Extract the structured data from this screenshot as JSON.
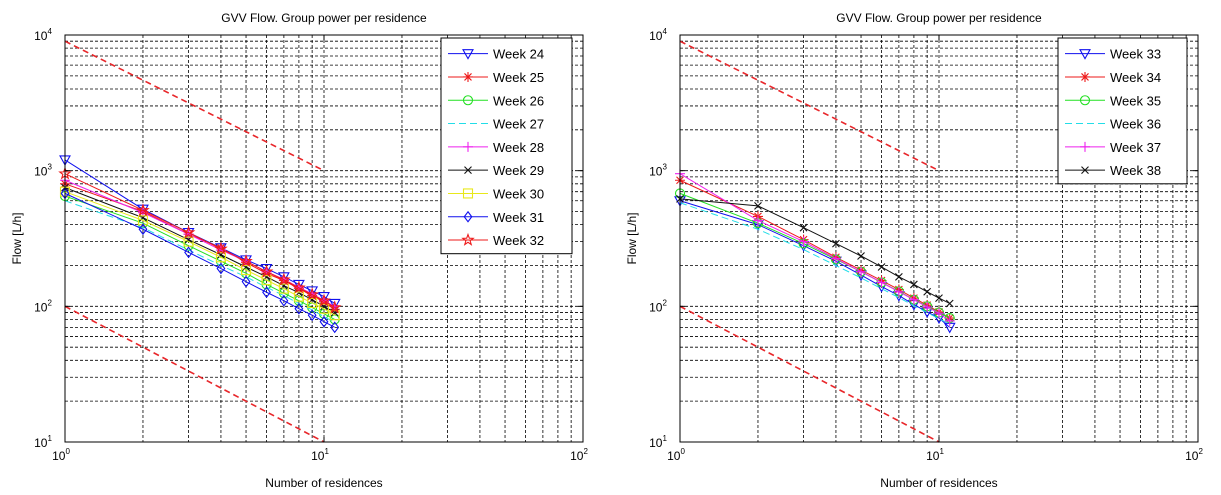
{
  "chart_data": [
    {
      "type": "line",
      "title": "GVV Flow. Group power per residence",
      "xlabel": "Number of residences",
      "ylabel": "Flow [L/h]",
      "xscale": "log",
      "yscale": "log",
      "xlim": [
        1,
        100
      ],
      "ylim": [
        10,
        10000
      ],
      "xticks": [
        {
          "base": "10",
          "exp": "0"
        },
        {
          "base": "10",
          "exp": "1"
        },
        {
          "base": "10",
          "exp": "2"
        }
      ],
      "yticks": [
        {
          "base": "10",
          "exp": "1"
        },
        {
          "base": "10",
          "exp": "2"
        },
        {
          "base": "10",
          "exp": "3"
        },
        {
          "base": "10",
          "exp": "4"
        }
      ],
      "grid": true,
      "legend_position": "top-right",
      "x": [
        1,
        2,
        3,
        4,
        5,
        6,
        7,
        8,
        9,
        10,
        11
      ],
      "reference_lines": [
        {
          "x": [
            1,
            10
          ],
          "y": [
            9000,
            1000
          ],
          "color": "#e8262a",
          "style": "dashed"
        },
        {
          "x": [
            1,
            10
          ],
          "y": [
            100,
            10
          ],
          "color": "#e8262a",
          "style": "dashed"
        }
      ],
      "series": [
        {
          "name": "Week 24",
          "color": "#1010ee",
          "marker": "triangle-down",
          "values": [
            1200,
            520,
            350,
            270,
            220,
            190,
            165,
            145,
            130,
            118,
            105
          ]
        },
        {
          "name": "Week 25",
          "color": "#ee1a1a",
          "marker": "asterisk",
          "values": [
            800,
            500,
            340,
            270,
            210,
            175,
            155,
            135,
            120,
            108,
            95
          ]
        },
        {
          "name": "Week 26",
          "color": "#22e022",
          "marker": "circle",
          "values": [
            650,
            410,
            280,
            215,
            175,
            145,
            125,
            110,
            98,
            88,
            80
          ]
        },
        {
          "name": "Week 27",
          "color": "#22dde8",
          "marker": "none",
          "values": [
            600,
            380,
            260,
            200,
            165,
            138,
            120,
            105,
            94,
            84,
            76
          ]
        },
        {
          "name": "Week 28",
          "color": "#ee22ee",
          "marker": "plus",
          "values": [
            850,
            490,
            340,
            260,
            215,
            180,
            158,
            138,
            124,
            110,
            100
          ]
        },
        {
          "name": "Week 29",
          "color": "#111111",
          "marker": "x",
          "values": [
            750,
            450,
            310,
            240,
            195,
            165,
            142,
            126,
            112,
            100,
            90
          ]
        },
        {
          "name": "Week 30",
          "color": "#e8e81a",
          "marker": "square",
          "values": [
            700,
            430,
            300,
            230,
            185,
            156,
            135,
            118,
            106,
            96,
            86
          ]
        },
        {
          "name": "Week 31",
          "color": "#1010ee",
          "marker": "diamond",
          "values": [
            680,
            370,
            250,
            190,
            152,
            127,
            110,
            96,
            86,
            77,
            70
          ]
        },
        {
          "name": "Week 32",
          "color": "#ee1a1a",
          "marker": "star",
          "values": [
            950,
            510,
            350,
            265,
            215,
            180,
            157,
            137,
            122,
            110,
            98
          ]
        }
      ]
    },
    {
      "type": "line",
      "title": "GVV Flow. Group power per residence",
      "xlabel": "Number of residences",
      "ylabel": "Flow [L/h]",
      "xscale": "log",
      "yscale": "log",
      "xlim": [
        1,
        100
      ],
      "ylim": [
        10,
        10000
      ],
      "xticks": [
        {
          "base": "10",
          "exp": "0"
        },
        {
          "base": "10",
          "exp": "1"
        },
        {
          "base": "10",
          "exp": "2"
        }
      ],
      "yticks": [
        {
          "base": "10",
          "exp": "1"
        },
        {
          "base": "10",
          "exp": "2"
        },
        {
          "base": "10",
          "exp": "3"
        },
        {
          "base": "10",
          "exp": "4"
        }
      ],
      "grid": true,
      "legend_position": "top-right",
      "x": [
        1,
        2,
        3,
        4,
        5,
        6,
        7,
        8,
        9,
        10,
        11
      ],
      "reference_lines": [
        {
          "x": [
            1,
            10
          ],
          "y": [
            9000,
            1000
          ],
          "color": "#e8262a",
          "style": "dashed"
        },
        {
          "x": [
            1,
            10
          ],
          "y": [
            100,
            10
          ],
          "color": "#e8262a",
          "style": "dashed"
        }
      ],
      "series": [
        {
          "name": "Week 33",
          "color": "#1010ee",
          "marker": "triangle-down",
          "values": [
            600,
            400,
            280,
            215,
            170,
            140,
            120,
            103,
            91,
            82,
            70
          ]
        },
        {
          "name": "Week 34",
          "color": "#ee1a1a",
          "marker": "asterisk",
          "values": [
            850,
            460,
            310,
            230,
            185,
            155,
            133,
            115,
            102,
            91,
            82
          ]
        },
        {
          "name": "Week 35",
          "color": "#22e022",
          "marker": "circle",
          "values": [
            680,
            410,
            290,
            222,
            180,
            150,
            129,
            112,
            100,
            90,
            82
          ]
        },
        {
          "name": "Week 36",
          "color": "#22dde8",
          "marker": "none",
          "values": [
            580,
            370,
            262,
            200,
            162,
            135,
            116,
            101,
            90,
            81,
            74
          ]
        },
        {
          "name": "Week 37",
          "color": "#ee22ee",
          "marker": "plus",
          "values": [
            950,
            430,
            300,
            225,
            180,
            150,
            128,
            112,
            99,
            89,
            78
          ]
        },
        {
          "name": "Week 38",
          "color": "#111111",
          "marker": "x",
          "values": [
            620,
            550,
            380,
            290,
            235,
            195,
            165,
            145,
            128,
            115,
            105
          ]
        }
      ]
    }
  ]
}
